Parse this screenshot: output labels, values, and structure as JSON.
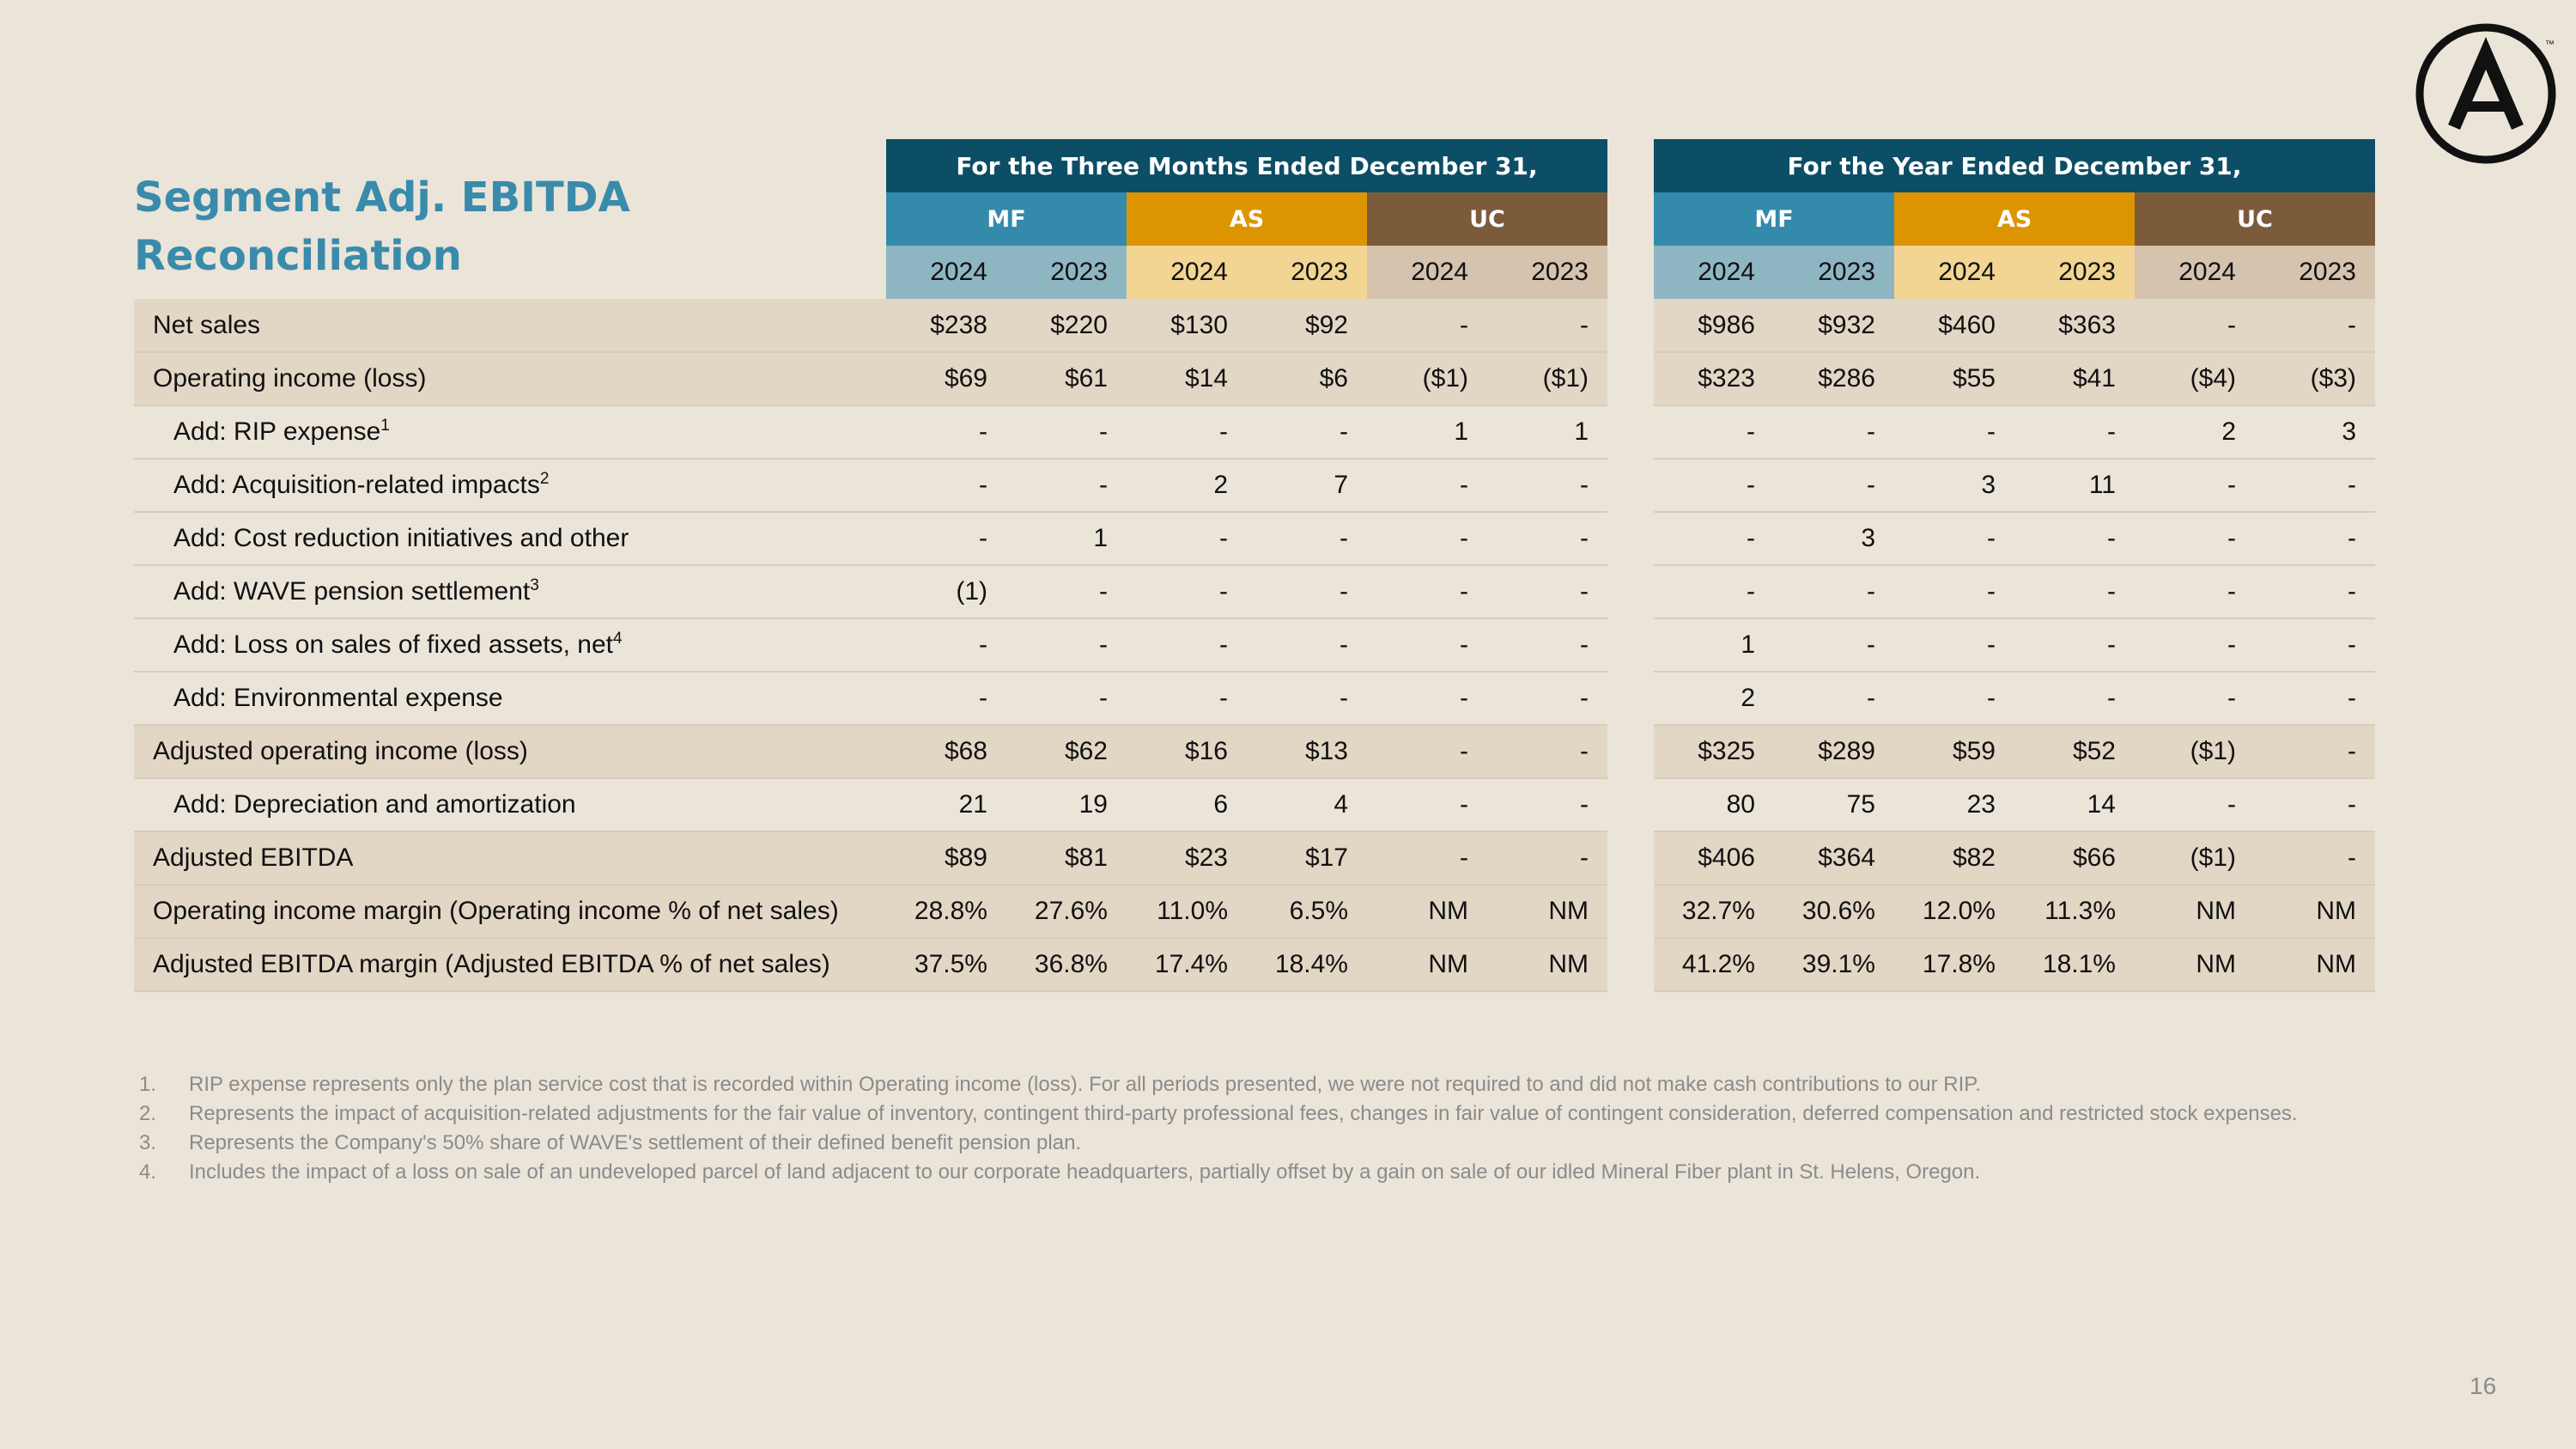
{
  "title_line1": "Segment Adj. EBITDA",
  "title_line2": "Reconciliation",
  "page_number": "16",
  "logo": {
    "icon": "armstrong-a-logo",
    "trademark": "™"
  },
  "header": {
    "three_months": "For the Three Months Ended December 31,",
    "year": "For the Year Ended December 31,",
    "segments": [
      "MF",
      "AS",
      "UC"
    ],
    "years": [
      "2024",
      "2023"
    ]
  },
  "colors": {
    "dark_header": "#0b4e66",
    "mf": "#348aab",
    "as": "#dc9400",
    "uc": "#7c5b3b",
    "title": "#3a8bab"
  },
  "rows": [
    {
      "label": "Net sales",
      "sup": "",
      "values": [
        "$238",
        "$220",
        "$130",
        "$92",
        "-",
        "-",
        "$986",
        "$932",
        "$460",
        "$363",
        "-",
        "-"
      ]
    },
    {
      "label": "Operating income (loss)",
      "sup": "",
      "values": [
        "$69",
        "$61",
        "$14",
        "$6",
        "($1)",
        "($1)",
        "$323",
        "$286",
        "$55",
        "$41",
        "($4)",
        "($3)"
      ]
    },
    {
      "label": "Add: RIP expense",
      "sup": "1",
      "values": [
        "-",
        "-",
        "-",
        "-",
        "1",
        "1",
        "-",
        "-",
        "-",
        "-",
        "2",
        "3"
      ]
    },
    {
      "label": "Add: Acquisition-related impacts",
      "sup": "2",
      "values": [
        "-",
        "-",
        "2",
        "7",
        "-",
        "-",
        "-",
        "-",
        "3",
        "11",
        "-",
        "-"
      ]
    },
    {
      "label": "Add: Cost reduction initiatives and other",
      "sup": "",
      "values": [
        "-",
        "1",
        "-",
        "-",
        "-",
        "-",
        "-",
        "3",
        "-",
        "-",
        "-",
        "-"
      ]
    },
    {
      "label": "Add: WAVE pension settlement",
      "sup": "3",
      "values": [
        "(1)",
        "-",
        "-",
        "-",
        "-",
        "-",
        "-",
        "-",
        "-",
        "-",
        "-",
        "-"
      ]
    },
    {
      "label": "Add: Loss on sales of fixed assets, net",
      "sup": "4",
      "values": [
        "-",
        "-",
        "-",
        "-",
        "-",
        "-",
        "1",
        "-",
        "-",
        "-",
        "-",
        "-"
      ]
    },
    {
      "label": "Add: Environmental expense",
      "sup": "",
      "values": [
        "-",
        "-",
        "-",
        "-",
        "-",
        "-",
        "2",
        "-",
        "-",
        "-",
        "-",
        "-"
      ]
    },
    {
      "label": "Adjusted operating income (loss)",
      "sup": "",
      "values": [
        "$68",
        "$62",
        "$16",
        "$13",
        "-",
        "-",
        "$325",
        "$289",
        "$59",
        "$52",
        "($1)",
        "-"
      ]
    },
    {
      "label": "Add: Depreciation and amortization",
      "sup": "",
      "values": [
        "21",
        "19",
        "6",
        "4",
        "-",
        "-",
        "80",
        "75",
        "23",
        "14",
        "-",
        "-"
      ]
    },
    {
      "label": "Adjusted EBITDA",
      "sup": "",
      "values": [
        "$89",
        "$81",
        "$23",
        "$17",
        "-",
        "-",
        "$406",
        "$364",
        "$82",
        "$66",
        "($1)",
        "-"
      ]
    },
    {
      "label": "Operating income margin (Operating income % of net sales)",
      "sup": "",
      "values": [
        "28.8%",
        "27.6%",
        "11.0%",
        "6.5%",
        "NM",
        "NM",
        "32.7%",
        "30.6%",
        "12.0%",
        "11.3%",
        "NM",
        "NM"
      ]
    },
    {
      "label": "Adjusted EBITDA margin (Adjusted EBITDA % of net sales)",
      "sup": "",
      "values": [
        "37.5%",
        "36.8%",
        "17.4%",
        "18.4%",
        "NM",
        "NM",
        "41.2%",
        "39.1%",
        "17.8%",
        "18.1%",
        "NM",
        "NM"
      ]
    }
  ],
  "footnotes": [
    {
      "num": "1.",
      "text": "RIP expense represents only the plan service cost that is recorded within Operating income (loss). For all periods presented, we were not required to and did not make cash contributions to our RIP."
    },
    {
      "num": "2.",
      "text": "Represents the impact of acquisition-related adjustments for the fair value of inventory, contingent third-party professional fees, changes in fair value of contingent consideration, deferred compensation and restricted stock expenses."
    },
    {
      "num": "3.",
      "text": "Represents the Company's 50% share of WAVE's settlement of their defined benefit pension plan."
    },
    {
      "num": "4.",
      "text": "Includes the impact of a loss on sale of an undeveloped parcel of land adjacent to our corporate headquarters, partially offset by a gain on sale of our idled Mineral Fiber plant in St. Helens, Oregon."
    }
  ]
}
